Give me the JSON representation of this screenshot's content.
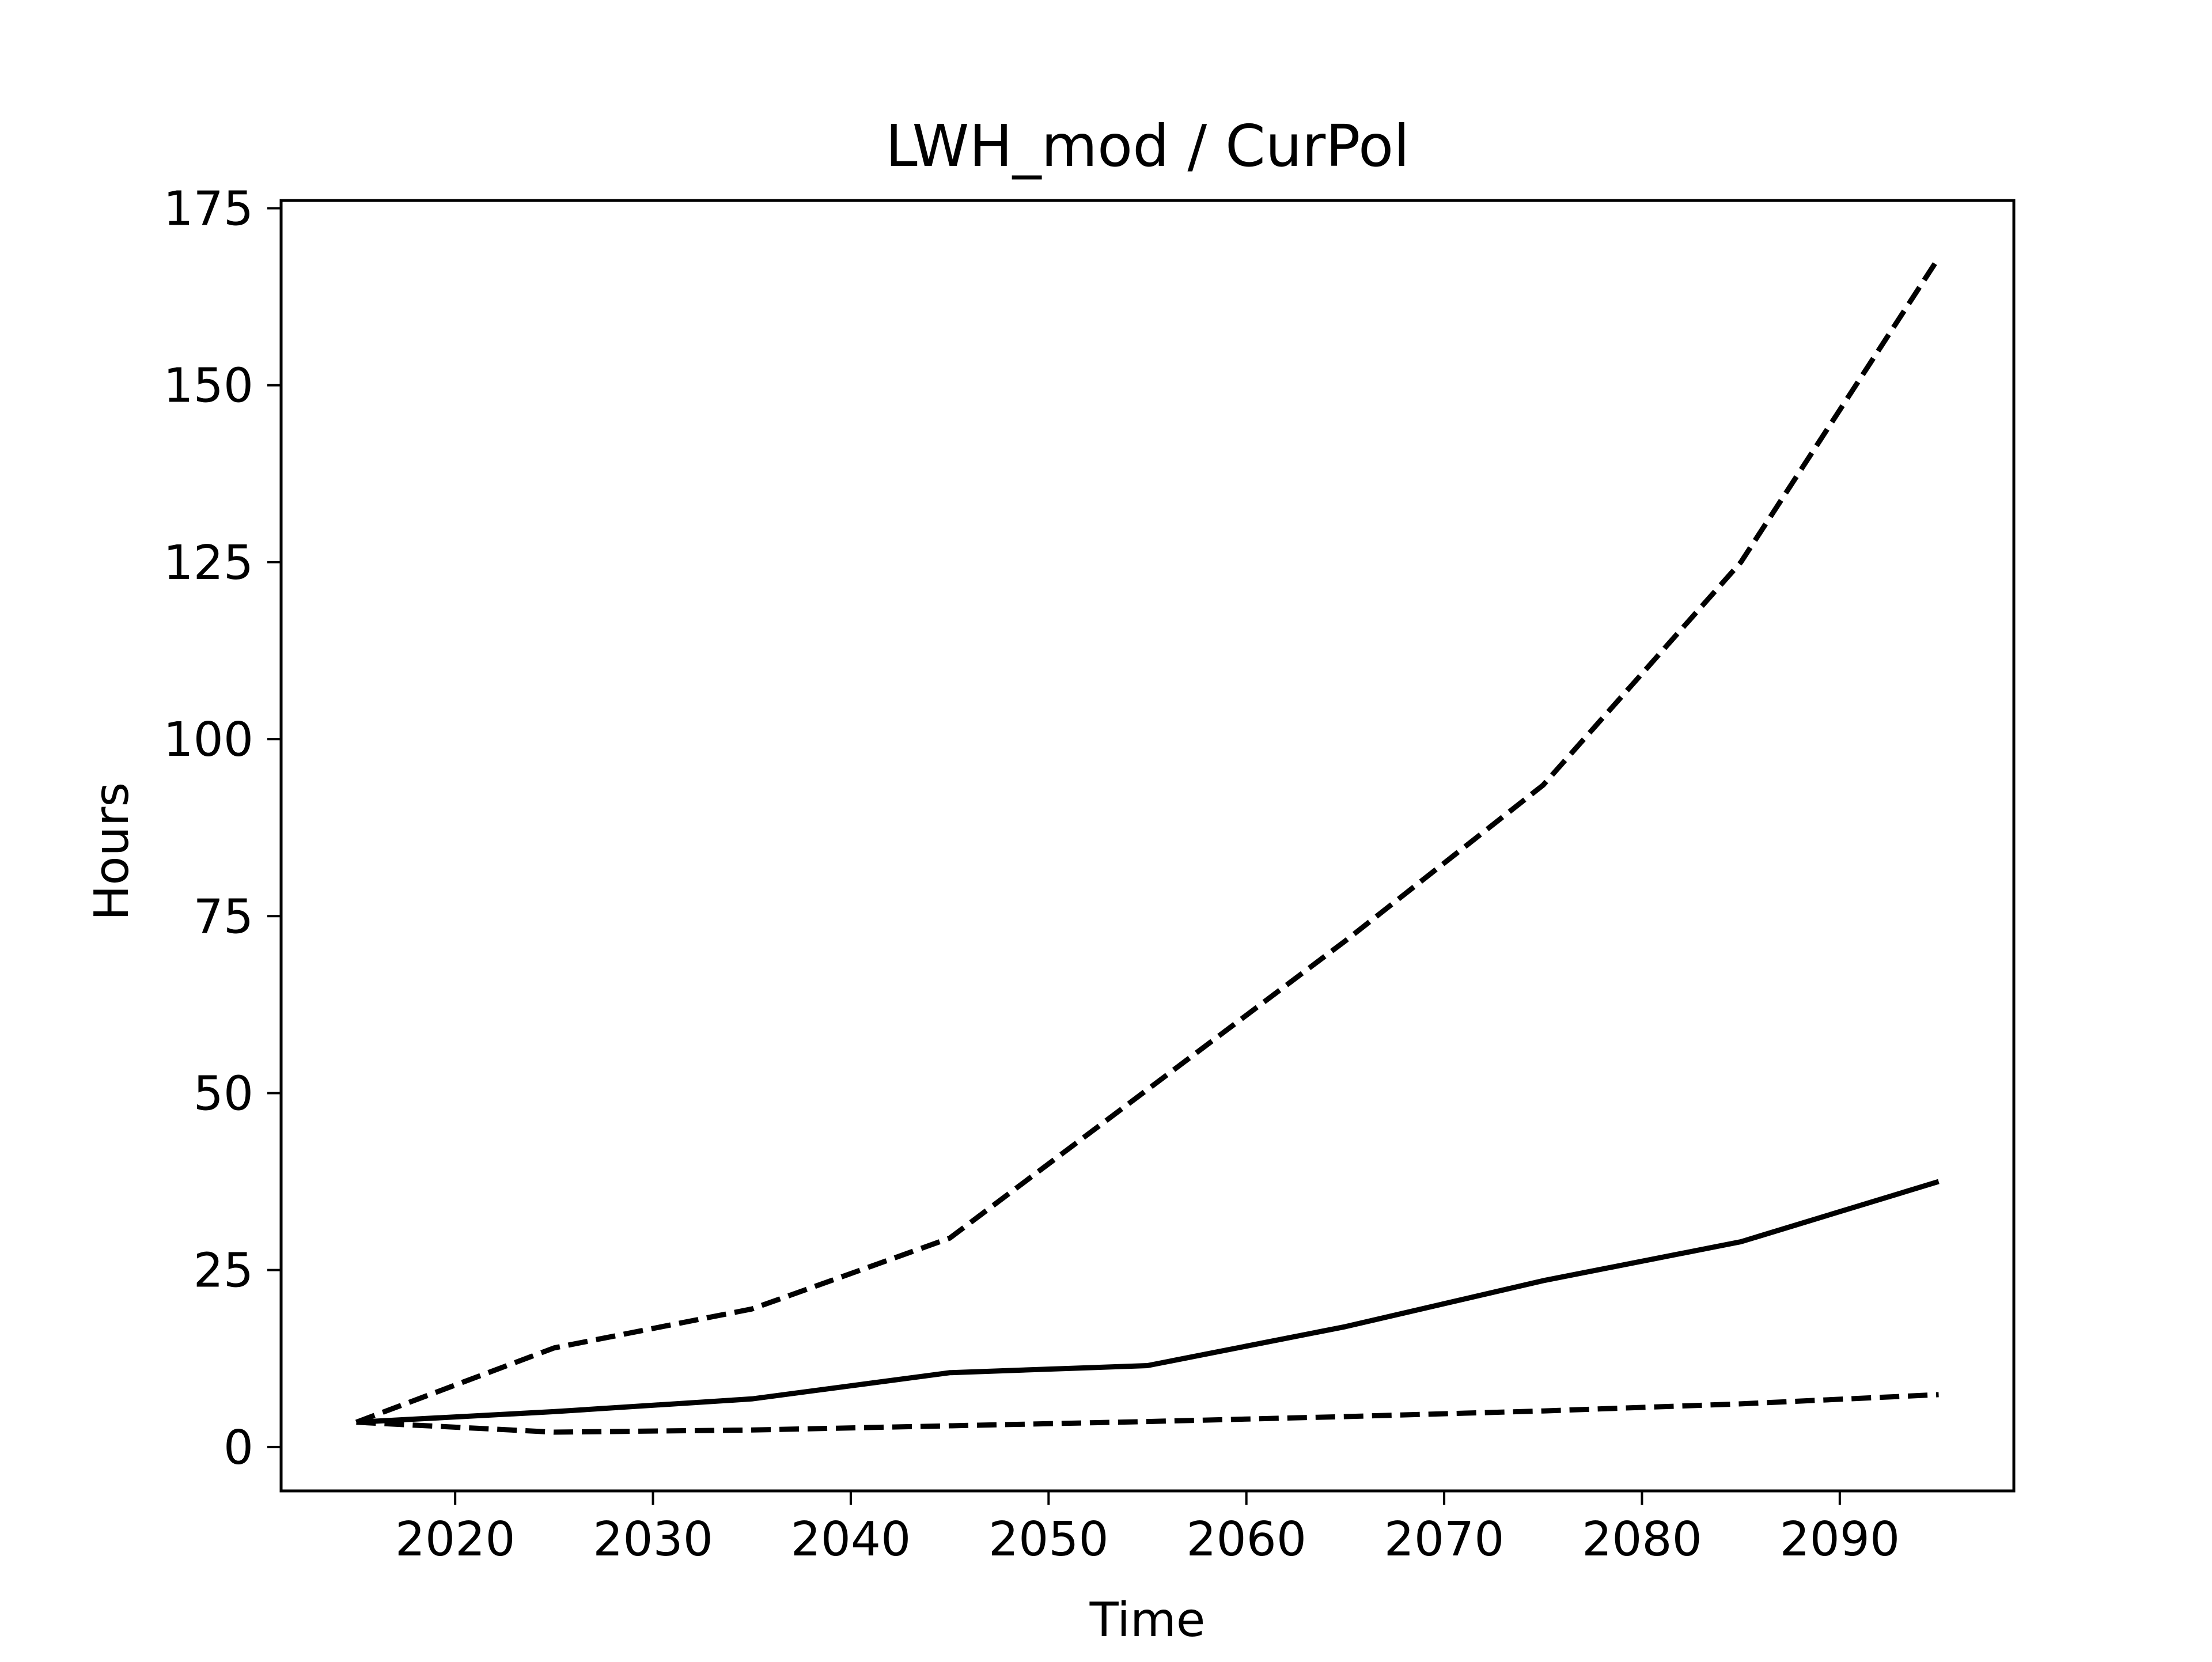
{
  "chart_data": {
    "type": "line",
    "title": "LWH_mod / CurPol",
    "xlabel": "Time",
    "ylabel": "Hours",
    "xlim": [
      2011.2,
      2098.8
    ],
    "ylim": [
      -6.2,
      176.1
    ],
    "x_ticks": [
      2020,
      2030,
      2040,
      2050,
      2060,
      2070,
      2080,
      2090
    ],
    "y_ticks": [
      0,
      25,
      50,
      75,
      100,
      125,
      150,
      175
    ],
    "grid": false,
    "legend": "none",
    "x": [
      2015,
      2025,
      2035,
      2045,
      2055,
      2065,
      2075,
      2085,
      2095
    ],
    "series": [
      {
        "style": "dashed",
        "color": "#000000",
        "values": [
          3.5,
          14.0,
          19.5,
          29.5,
          50.5,
          71.5,
          93.5,
          125.0,
          168.0
        ]
      },
      {
        "style": "solid",
        "color": "#000000",
        "values": [
          3.5,
          5.0,
          6.8,
          10.5,
          11.5,
          17.0,
          23.5,
          29.0,
          37.5
        ]
      },
      {
        "style": "dashed",
        "color": "#000000",
        "values": [
          3.5,
          2.1,
          2.4,
          3.0,
          3.6,
          4.3,
          5.1,
          6.1,
          7.4
        ]
      }
    ]
  }
}
